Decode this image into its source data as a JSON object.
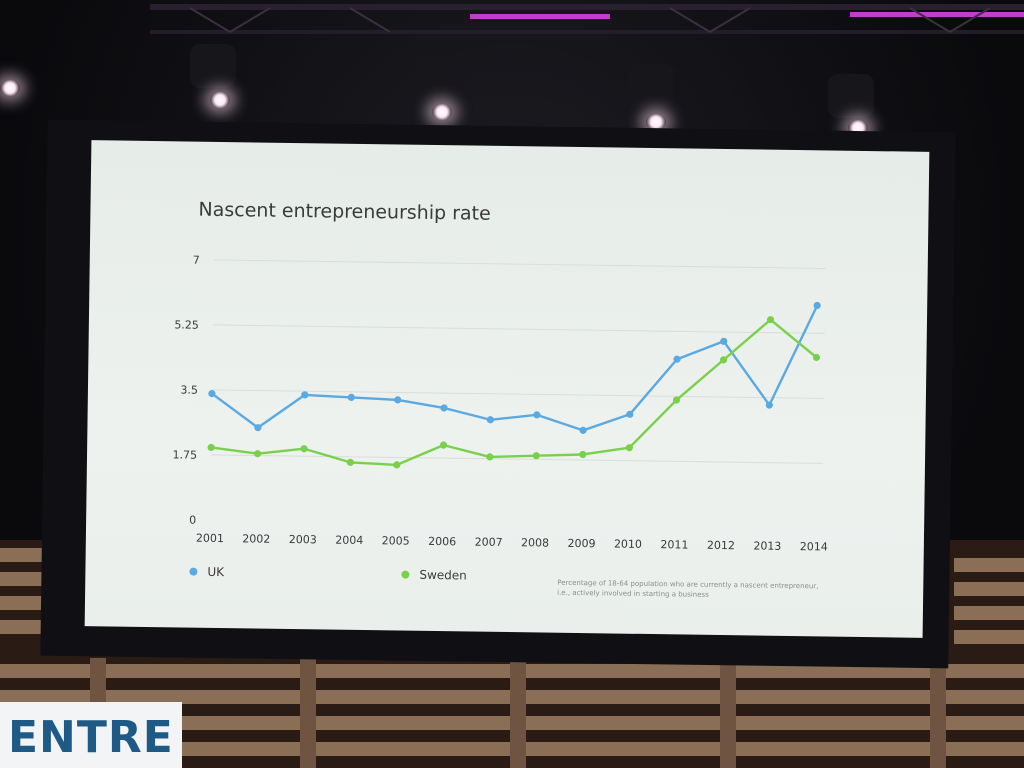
{
  "colors": {
    "uk": "#5aa9e0",
    "sweden": "#79d14b",
    "grid": "#d7dedb",
    "text": "#3b3b3b",
    "note": "#8a8f8c"
  },
  "sign_text": "ENTRE",
  "chart_data": {
    "type": "line",
    "title": "Nascent entrepreneurship rate",
    "xlabel": "",
    "ylabel": "",
    "categories": [
      "2001",
      "2002",
      "2003",
      "2004",
      "2005",
      "2006",
      "2007",
      "2008",
      "2009",
      "2010",
      "2011",
      "2012",
      "2013",
      "2014"
    ],
    "y_ticks": [
      "0",
      "1.75",
      "3.5",
      "5.25",
      "7"
    ],
    "ylim": [
      0,
      7
    ],
    "grid": true,
    "legend_position": "bottom",
    "series": [
      {
        "name": "UK",
        "values": [
          3.4,
          2.5,
          3.4,
          3.35,
          3.3,
          3.1,
          2.8,
          2.95,
          2.55,
          3.0,
          4.5,
          5.0,
          3.3,
          6.0
        ]
      },
      {
        "name": "Sweden",
        "values": [
          1.95,
          1.8,
          1.95,
          1.6,
          1.55,
          2.1,
          1.8,
          1.85,
          1.9,
          2.1,
          3.4,
          4.5,
          5.6,
          4.6
        ]
      }
    ],
    "note": "Percentage of 18-64 population who are currently a nascent entrepreneur, i.e., actively involved in starting a business"
  }
}
